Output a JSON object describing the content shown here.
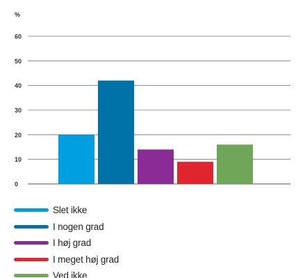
{
  "chart_data": {
    "type": "bar",
    "title": "",
    "ylabel": "%",
    "xlabel": "",
    "ylim": [
      0,
      60
    ],
    "yticks": [
      0,
      10,
      20,
      30,
      40,
      50,
      60
    ],
    "grid": true,
    "legend_position": "bottom",
    "series": [
      {
        "name": "Slet ikke",
        "value": 20,
        "color": "#00a0e0"
      },
      {
        "name": "I nogen grad",
        "value": 42,
        "color": "#0072a8"
      },
      {
        "name": "I høj grad",
        "value": 14,
        "color": "#8b2b96"
      },
      {
        "name": "I meget høj grad",
        "value": 9,
        "color": "#e0252f"
      },
      {
        "name": "Ved ikke",
        "value": 16,
        "color": "#6fa657"
      }
    ]
  }
}
